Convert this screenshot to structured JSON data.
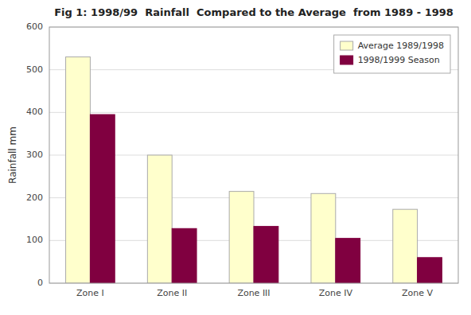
{
  "chart_data": {
    "type": "bar",
    "title": "Fig 1: 1998/99  Rainfall  Compared to the Average  from 1989 - 1998",
    "ylabel": "Rainfall mm",
    "categories": [
      "Zone I",
      "Zone II",
      "Zone III",
      "Zone IV",
      "Zone V"
    ],
    "series": [
      {
        "name": "Average 1989/1998",
        "color": "#FFFFCC",
        "values": [
          530,
          300,
          215,
          210,
          173
        ]
      },
      {
        "name": "1998/1999 Season",
        "color": "#800040",
        "values": [
          395,
          128,
          133,
          105,
          60
        ]
      }
    ],
    "ylim": [
      0,
      600
    ],
    "yticks": [
      0,
      100,
      200,
      300,
      400,
      500,
      600
    ],
    "grid": true,
    "legend": "upper right"
  }
}
